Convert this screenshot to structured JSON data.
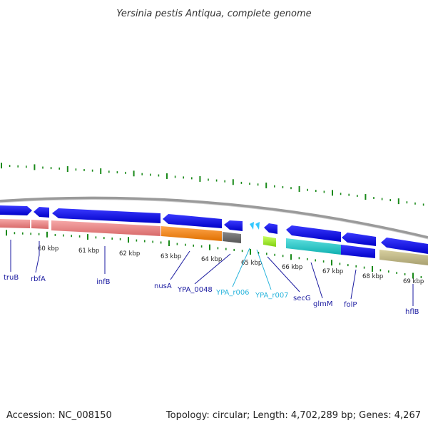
{
  "title": "Yersinia pestis Antiqua, complete genome",
  "accession": "Accession: NC_008150",
  "summary": "Topology: circular; Length: 4,702,289 bp; Genes: 4,267",
  "kbp_labels": [
    "60 kbp",
    "61 kbp",
    "62 kbp",
    "63 kbp",
    "64 kbp",
    "65 kbp",
    "66 kbp",
    "67 kbp",
    "68 kbp",
    "69 kbp"
  ],
  "genes": [
    {
      "name": "truB",
      "color": "#1a1aa0"
    },
    {
      "name": "rbfA",
      "color": "#1a1aa0"
    },
    {
      "name": "infB",
      "color": "#1a1aa0"
    },
    {
      "name": "nusA",
      "color": "#1a1aa0"
    },
    {
      "name": "YPA_0048",
      "color": "#1a1aa0"
    },
    {
      "name": "YPA_r006",
      "color": "#28b4dc"
    },
    {
      "name": "YPA_r007",
      "color": "#28b4dc"
    },
    {
      "name": "secG",
      "color": "#1a1aa0"
    },
    {
      "name": "glmM",
      "color": "#1a1aa0"
    },
    {
      "name": "folP",
      "color": "#1a1aa0"
    },
    {
      "name": "hflB",
      "color": "#1a1aa0"
    }
  ],
  "colors": {
    "cds_forward": "#1010e0",
    "backbone": "#808080",
    "gc_tick": "#1a8a1a",
    "salmon": "#f08080",
    "orange": "#ff8c1a",
    "gray": "#6c6c6c",
    "lime": "#99ee22",
    "cyan": "#22cccc",
    "khaki": "#c8c088"
  }
}
